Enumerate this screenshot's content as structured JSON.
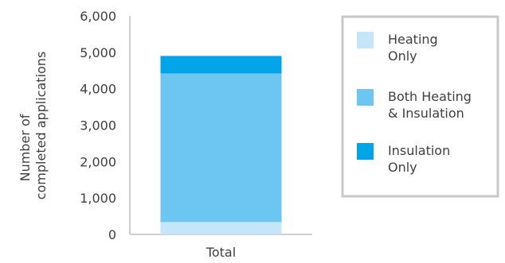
{
  "chart_data": {
    "type": "bar",
    "stacked": true,
    "categories": [
      "Total"
    ],
    "series": [
      {
        "name": "Heating Only",
        "values": [
          340
        ],
        "color": "#c5e6f8",
        "legend_lines": [
          "Heating",
          "Only"
        ]
      },
      {
        "name": "Both Heating & Insulation",
        "values": [
          4080
        ],
        "color": "#6cc6f1",
        "legend_lines": [
          "Both Heating",
          "& Insulation"
        ]
      },
      {
        "name": "Insulation Only",
        "values": [
          480
        ],
        "color": "#00a5e8",
        "legend_lines": [
          "Insulation",
          "Only"
        ]
      }
    ],
    "ylabel_lines": [
      "Number of",
      "completed applications"
    ],
    "ylim": [
      0,
      6000
    ],
    "yticks": [
      0,
      1000,
      2000,
      3000,
      4000,
      5000,
      6000
    ],
    "ytick_labels": [
      "0",
      "1,000",
      "2,000",
      "3,000",
      "4,000",
      "5,000",
      "6,000"
    ],
    "grid": false,
    "legend_position": "right"
  }
}
